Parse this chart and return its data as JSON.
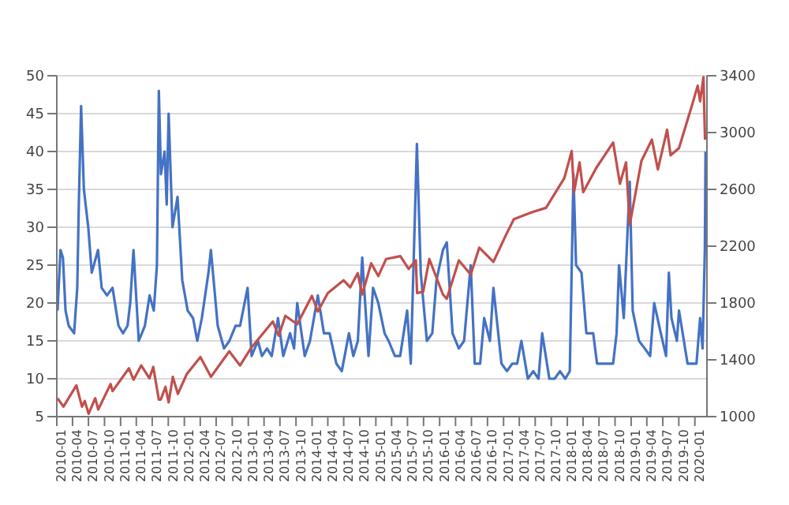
{
  "chart_data": {
    "type": "line",
    "grid": "y",
    "xlim": [
      "2010-01-01",
      "2020-03-10"
    ],
    "xticks": [
      {
        "value": "2010-01-01",
        "label": "2010-01"
      },
      {
        "value": "2010-04-01",
        "label": "2010-04"
      },
      {
        "value": "2010-07-01",
        "label": "2010-07"
      },
      {
        "value": "2010-10-01",
        "label": "2010-10"
      },
      {
        "value": "2011-01-01",
        "label": "2011-01"
      },
      {
        "value": "2011-04-01",
        "label": "2011-04"
      },
      {
        "value": "2011-07-01",
        "label": "2011-07"
      },
      {
        "value": "2011-10-01",
        "label": "2011-10"
      },
      {
        "value": "2012-01-01",
        "label": "2012-01"
      },
      {
        "value": "2012-04-01",
        "label": "2012-04"
      },
      {
        "value": "2012-07-01",
        "label": "2012-07"
      },
      {
        "value": "2012-10-01",
        "label": "2012-10"
      },
      {
        "value": "2013-01-01",
        "label": "2013-01"
      },
      {
        "value": "2013-04-01",
        "label": "2013-04"
      },
      {
        "value": "2013-07-01",
        "label": "2013-07"
      },
      {
        "value": "2013-10-01",
        "label": "2013-10"
      },
      {
        "value": "2014-01-01",
        "label": "2014-01"
      },
      {
        "value": "2014-04-01",
        "label": "2014-04"
      },
      {
        "value": "2014-07-01",
        "label": "2014-07"
      },
      {
        "value": "2014-10-01",
        "label": "2014-10"
      },
      {
        "value": "2015-01-01",
        "label": "2015-01"
      },
      {
        "value": "2015-04-01",
        "label": "2015-04"
      },
      {
        "value": "2015-07-01",
        "label": "2015-07"
      },
      {
        "value": "2015-10-01",
        "label": "2015-10"
      },
      {
        "value": "2016-01-01",
        "label": "2016-01"
      },
      {
        "value": "2016-04-01",
        "label": "2016-04"
      },
      {
        "value": "2016-07-01",
        "label": "2016-07"
      },
      {
        "value": "2016-10-01",
        "label": "2016-10"
      },
      {
        "value": "2017-01-01",
        "label": "2017-01"
      },
      {
        "value": "2017-04-01",
        "label": "2017-04"
      },
      {
        "value": "2017-07-01",
        "label": "2017-07"
      },
      {
        "value": "2017-10-01",
        "label": "2017-10"
      },
      {
        "value": "2018-01-01",
        "label": "2018-01"
      },
      {
        "value": "2018-04-01",
        "label": "2018-04"
      },
      {
        "value": "2018-07-01",
        "label": "2018-07"
      },
      {
        "value": "2018-10-01",
        "label": "2018-10"
      },
      {
        "value": "2019-01-01",
        "label": "2019-01"
      },
      {
        "value": "2019-04-01",
        "label": "2019-04"
      },
      {
        "value": "2019-07-01",
        "label": "2019-07"
      },
      {
        "value": "2019-10-01",
        "label": "2019-10"
      },
      {
        "value": "2020-01-01",
        "label": "2020-01"
      }
    ],
    "ylim": [
      5,
      50
    ],
    "yticks": [
      5,
      10,
      15,
      20,
      25,
      30,
      35,
      40,
      45,
      50
    ],
    "y2lim": [
      1000,
      3400
    ],
    "y2ticks": [
      1000,
      1400,
      1800,
      2200,
      2600,
      3000,
      3400
    ],
    "series": [
      {
        "color": "#4472c4",
        "x": [
          "2010-01-05",
          "2010-01-22",
          "2010-02-05",
          "2010-02-20",
          "2010-03-10",
          "2010-04-10",
          "2010-04-28",
          "2010-05-07",
          "2010-05-20",
          "2010-06-05",
          "2010-06-30",
          "2010-07-20",
          "2010-08-25",
          "2010-09-15",
          "2010-10-15",
          "2010-11-16",
          "2010-12-20",
          "2011-01-15",
          "2011-02-10",
          "2011-02-25",
          "2011-03-16",
          "2011-04-15",
          "2011-05-20",
          "2011-06-16",
          "2011-07-10",
          "2011-07-28",
          "2011-08-08",
          "2011-08-20",
          "2011-09-10",
          "2011-09-22",
          "2011-10-03",
          "2011-10-25",
          "2011-11-23",
          "2011-12-20",
          "2012-01-20",
          "2012-02-20",
          "2012-03-15",
          "2012-04-10",
          "2012-05-18",
          "2012-06-01",
          "2012-07-10",
          "2012-08-15",
          "2012-09-15",
          "2012-10-20",
          "2012-11-15",
          "2012-12-28",
          "2013-01-20",
          "2013-02-25",
          "2013-03-20",
          "2013-04-18",
          "2013-05-15",
          "2013-06-20",
          "2013-07-20",
          "2013-08-28",
          "2013-09-20",
          "2013-10-08",
          "2013-11-20",
          "2013-12-20",
          "2014-02-03",
          "2014-03-10",
          "2014-04-11",
          "2014-05-20",
          "2014-06-20",
          "2014-07-31",
          "2014-08-25",
          "2014-09-20",
          "2014-10-15",
          "2014-11-20",
          "2014-12-16",
          "2015-01-15",
          "2015-02-20",
          "2015-03-15",
          "2015-04-20",
          "2015-05-20",
          "2015-06-29",
          "2015-07-20",
          "2015-08-24",
          "2015-09-15",
          "2015-10-20",
          "2015-11-20",
          "2015-12-14",
          "2016-01-20",
          "2016-02-11",
          "2016-03-15",
          "2016-04-20",
          "2016-05-20",
          "2016-06-27",
          "2016-07-20",
          "2016-08-20",
          "2016-09-12",
          "2016-10-15",
          "2016-11-04",
          "2016-12-20",
          "2017-01-20",
          "2017-02-20",
          "2017-03-20",
          "2017-04-13",
          "2017-05-20",
          "2017-06-20",
          "2017-07-20",
          "2017-08-10",
          "2017-09-20",
          "2017-10-20",
          "2017-11-20",
          "2017-12-20",
          "2018-01-15",
          "2018-02-05",
          "2018-02-20",
          "2018-03-23",
          "2018-04-20",
          "2018-05-29",
          "2018-06-20",
          "2018-07-20",
          "2018-08-20",
          "2018-09-20",
          "2018-10-10",
          "2018-10-24",
          "2018-11-20",
          "2018-12-24",
          "2019-01-10",
          "2019-02-15",
          "2019-03-20",
          "2019-04-20",
          "2019-05-13",
          "2019-06-20",
          "2019-07-20",
          "2019-08-05",
          "2019-08-20",
          "2019-09-20",
          "2019-10-02",
          "2019-11-20",
          "2019-12-20",
          "2020-01-10",
          "2020-01-31",
          "2020-02-14",
          "2020-02-27",
          "2020-03-02"
        ],
        "values": [
          19,
          27,
          26,
          19,
          17,
          16,
          22,
          33,
          46,
          35,
          30,
          24,
          27,
          22,
          21,
          22,
          17,
          16,
          17,
          20,
          27,
          15,
          17,
          21,
          19,
          25,
          48,
          37,
          40,
          33,
          45,
          30,
          34,
          23,
          19,
          18,
          15,
          18,
          24,
          27,
          17,
          14,
          15,
          17,
          17,
          22,
          13,
          15,
          13,
          14,
          13,
          18,
          13,
          16,
          14,
          20,
          13,
          15,
          21,
          16,
          16,
          12,
          11,
          16,
          13,
          15,
          26,
          13,
          22,
          20,
          16,
          15,
          13,
          13,
          19,
          12,
          41,
          24,
          15,
          16,
          23,
          27,
          28,
          16,
          14,
          15,
          25,
          12,
          12,
          18,
          15,
          22,
          12,
          11,
          12,
          12,
          15,
          10,
          11,
          10,
          16,
          10,
          10,
          11,
          10,
          11,
          37,
          25,
          24,
          16,
          16,
          12,
          12,
          12,
          12,
          16,
          25,
          18,
          36,
          19,
          15,
          14,
          13,
          20,
          16,
          13,
          24,
          18,
          15,
          19,
          12,
          12,
          12,
          18,
          14,
          27,
          40
        ]
      },
      {
        "color": "#c0504d",
        "axis": "y2",
        "x": [
          "2010-01-05",
          "2010-02-08",
          "2010-04-23",
          "2010-05-25",
          "2010-06-10",
          "2010-07-02",
          "2010-08-09",
          "2010-08-26",
          "2010-11-05",
          "2010-11-16",
          "2011-02-18",
          "2011-03-16",
          "2011-04-29",
          "2011-06-15",
          "2011-07-07",
          "2011-08-08",
          "2011-08-19",
          "2011-09-15",
          "2011-10-03",
          "2011-10-27",
          "2011-11-25",
          "2012-01-15",
          "2012-04-02",
          "2012-06-01",
          "2012-09-14",
          "2012-11-15",
          "2013-01-15",
          "2013-05-21",
          "2013-06-24",
          "2013-08-01",
          "2013-10-08",
          "2013-12-31",
          "2014-02-03",
          "2014-04-01",
          "2014-06-30",
          "2014-08-07",
          "2014-09-19",
          "2014-10-15",
          "2014-12-05",
          "2015-01-15",
          "2015-03-01",
          "2015-05-21",
          "2015-07-08",
          "2015-08-18",
          "2015-08-25",
          "2015-09-29",
          "2015-11-03",
          "2016-01-20",
          "2016-02-11",
          "2016-04-20",
          "2016-06-27",
          "2016-08-15",
          "2016-11-04",
          "2017-01-15",
          "2017-03-01",
          "2017-06-15",
          "2017-09-01",
          "2017-12-15",
          "2018-01-26",
          "2018-02-08",
          "2018-03-12",
          "2018-04-02",
          "2018-06-15",
          "2018-09-20",
          "2018-10-29",
          "2018-12-03",
          "2018-12-24",
          "2019-03-01",
          "2019-04-30",
          "2019-06-03",
          "2019-07-26",
          "2019-08-15",
          "2019-10-02",
          "2019-12-15",
          "2020-01-17",
          "2020-01-31",
          "2020-02-19",
          "2020-02-28"
        ],
        "values": [
          1130,
          1070,
          1220,
          1070,
          1110,
          1020,
          1130,
          1050,
          1230,
          1180,
          1340,
          1260,
          1360,
          1270,
          1350,
          1120,
          1120,
          1210,
          1100,
          1280,
          1160,
          1300,
          1420,
          1280,
          1460,
          1360,
          1480,
          1670,
          1570,
          1710,
          1650,
          1850,
          1740,
          1870,
          1960,
          1910,
          2010,
          1860,
          2080,
          1990,
          2110,
          2130,
          2040,
          2100,
          1870,
          1880,
          2110,
          1860,
          1830,
          2100,
          2000,
          2190,
          2090,
          2280,
          2390,
          2440,
          2470,
          2680,
          2870,
          2580,
          2790,
          2580,
          2750,
          2930,
          2640,
          2790,
          2350,
          2800,
          2950,
          2740,
          3020,
          2840,
          2890,
          3190,
          3330,
          3220,
          3390,
          2950
        ]
      }
    ]
  }
}
